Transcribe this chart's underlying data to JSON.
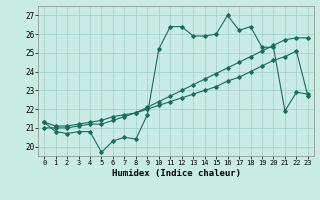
{
  "title": "",
  "xlabel": "Humidex (Indice chaleur)",
  "ylabel": "",
  "background_color": "#c8ebe4",
  "grid_color": "#a0cfc8",
  "line_color": "#1a6b5a",
  "xlim": [
    -0.5,
    23.5
  ],
  "ylim": [
    19.5,
    27.5
  ],
  "yticks": [
    20,
    21,
    22,
    23,
    24,
    25,
    26,
    27
  ],
  "xticks": [
    0,
    1,
    2,
    3,
    4,
    5,
    6,
    7,
    8,
    9,
    10,
    11,
    12,
    13,
    14,
    15,
    16,
    17,
    18,
    19,
    20,
    21,
    22,
    23
  ],
  "series1": [
    21.3,
    20.8,
    20.7,
    20.8,
    20.8,
    19.7,
    20.3,
    20.5,
    20.4,
    21.7,
    25.2,
    26.4,
    26.4,
    25.9,
    25.9,
    26.0,
    27.0,
    26.2,
    26.4,
    25.3,
    25.3,
    21.9,
    22.9,
    22.8
  ],
  "series2": [
    21.0,
    21.0,
    21.0,
    21.1,
    21.2,
    21.2,
    21.4,
    21.6,
    21.8,
    22.0,
    22.2,
    22.4,
    22.6,
    22.8,
    23.0,
    23.2,
    23.5,
    23.7,
    24.0,
    24.3,
    24.6,
    24.8,
    25.1,
    22.7
  ],
  "series3": [
    21.3,
    21.1,
    21.1,
    21.2,
    21.3,
    21.4,
    21.6,
    21.7,
    21.8,
    22.1,
    22.4,
    22.7,
    23.0,
    23.3,
    23.6,
    23.9,
    24.2,
    24.5,
    24.8,
    25.1,
    25.4,
    25.7,
    25.8,
    25.8
  ],
  "figsize": [
    3.2,
    2.0
  ],
  "dpi": 100
}
